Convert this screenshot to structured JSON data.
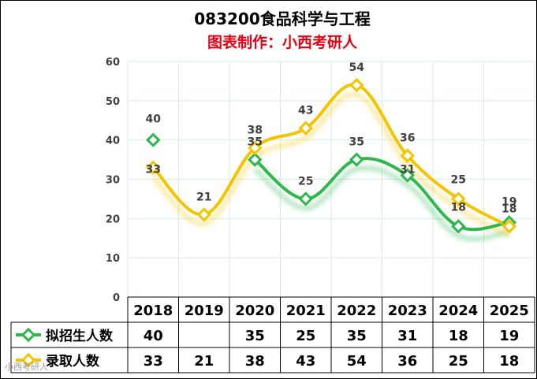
{
  "chart_data": {
    "type": "line",
    "title": "083200食品科学与工程",
    "subtitle": "图表制作：小西考研人",
    "categories": [
      "2018",
      "2019",
      "2020",
      "2021",
      "2022",
      "2023",
      "2024",
      "2025"
    ],
    "ylim": [
      0,
      60
    ],
    "yticks": [
      "0",
      "10",
      "20",
      "30",
      "40",
      "50",
      "60"
    ],
    "grid": true,
    "series": [
      {
        "name": "拟招生人数",
        "values": [
          40,
          null,
          35,
          25,
          35,
          31,
          18,
          19
        ],
        "labels": [
          "40",
          "",
          "35",
          "25",
          "35",
          "31",
          "18",
          "19"
        ],
        "color": "#2DB84C"
      },
      {
        "name": "录取人数",
        "values": [
          33,
          21,
          38,
          43,
          54,
          36,
          25,
          18
        ],
        "labels": [
          "33",
          "21",
          "38",
          "43",
          "54",
          "36",
          "25",
          "18"
        ],
        "color": "#F5C400"
      }
    ]
  },
  "watermark": "小西考研人"
}
